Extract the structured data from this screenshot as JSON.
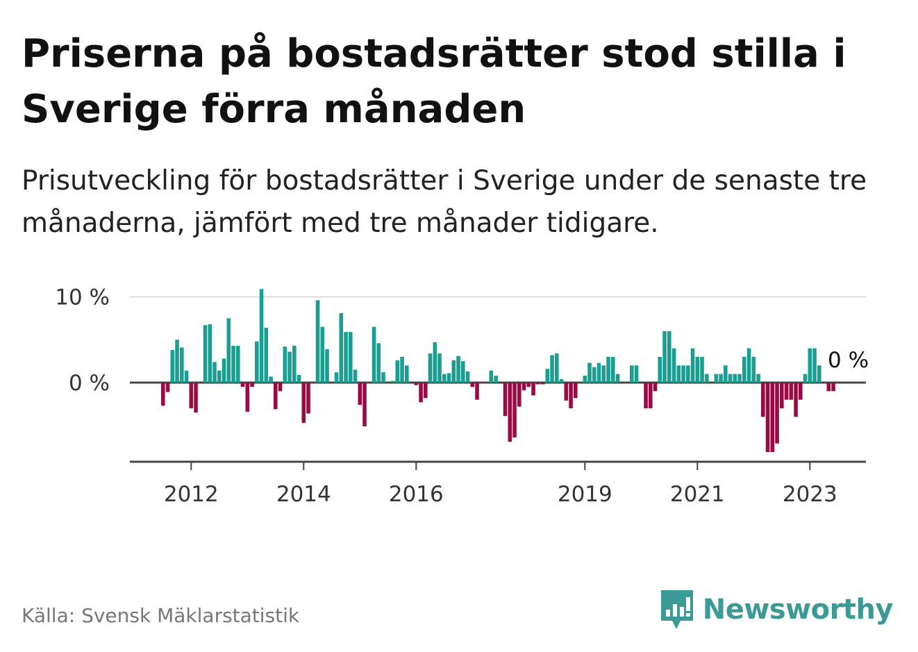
{
  "title": "Priserna på bostadsrätter stod stilla i Sverige förra månaden",
  "subtitle": "Prisutveckling för bostadsrätter i Sverige under de senaste tre månaderna, jämfört med tre månader tidigare.",
  "source": "Källa: Svensk Mäklarstatistik",
  "brand": {
    "name": "Newsworthy",
    "icon": "newsworthy-logo-icon",
    "color": "#3b9a95"
  },
  "chart_data": {
    "type": "bar",
    "title": "Priserna på bostadsrätter stod stilla i Sverige förra månaden",
    "subtitle": "Prisutveckling för bostadsrätter i Sverige under de senaste tre månaderna, jämfört med tre månader tidigare.",
    "xlabel": "",
    "ylabel": "",
    "ylim": [
      -9,
      10.5
    ],
    "grid": true,
    "x_start": "2011-07",
    "x_step": "month",
    "xticks": [
      {
        "label": "2012",
        "value": "2012-01"
      },
      {
        "label": "2014",
        "value": "2014-01"
      },
      {
        "label": "2016",
        "value": "2016-01"
      },
      {
        "label": "2019",
        "value": "2019-01"
      },
      {
        "label": "2021",
        "value": "2021-01"
      },
      {
        "label": "2023",
        "value": "2023-01"
      }
    ],
    "yticks": [
      {
        "label": "10 %",
        "value": 10
      },
      {
        "label": "0 %",
        "value": 0
      }
    ],
    "colors": {
      "positive": "#1a9e92",
      "negative": "#9b0a44"
    },
    "last_value_label": "0 %",
    "values": [
      -2.7,
      -1.1,
      3.8,
      5.0,
      4.1,
      1.4,
      -3.0,
      -3.5,
      -0.1,
      6.7,
      6.8,
      2.4,
      1.4,
      2.8,
      7.5,
      4.3,
      4.3,
      -0.5,
      -3.4,
      -0.5,
      4.8,
      10.9,
      6.4,
      0.7,
      -3.1,
      -1.0,
      4.2,
      3.6,
      4.3,
      0.9,
      -4.7,
      -3.6,
      0,
      9.6,
      6.5,
      3.9,
      0,
      1.2,
      8.1,
      5.9,
      5.9,
      1.5,
      -2.6,
      -5.1,
      0,
      6.5,
      4.6,
      1.2,
      0,
      0.2,
      2.6,
      3.0,
      2.0,
      0,
      -0.3,
      -2.3,
      -1.8,
      3.4,
      4.7,
      3.4,
      1.0,
      1.1,
      2.6,
      3.1,
      2.5,
      1.3,
      -0.5,
      -2.0,
      0,
      0,
      1.4,
      0.8,
      0,
      -3.9,
      -6.9,
      -6.4,
      -2.8,
      -0.9,
      -0.5,
      -1.5,
      -0.2,
      -0.2,
      1.6,
      3.2,
      3.4,
      0.4,
      -2.1,
      -3.0,
      -1.8,
      0,
      0.8,
      2.3,
      1.8,
      2.3,
      2.0,
      3.0,
      3.0,
      1.0,
      0,
      0,
      2.0,
      2.0,
      0,
      -3.0,
      -3.0,
      -1.0,
      3.0,
      6.0,
      6.0,
      4.0,
      2.0,
      2.0,
      2.0,
      4.0,
      3.0,
      3.0,
      1.0,
      0,
      1.0,
      1.0,
      2.0,
      1.0,
      1.0,
      1.0,
      3.0,
      4.0,
      3.0,
      1.0,
      -4.0,
      -8.1,
      -8.1,
      -7.1,
      -3.0,
      -2.0,
      -2.0,
      -4.0,
      -2.0,
      1.0,
      4.0,
      4.0,
      2.0,
      0,
      -1.0,
      -1.0,
      0
    ]
  }
}
